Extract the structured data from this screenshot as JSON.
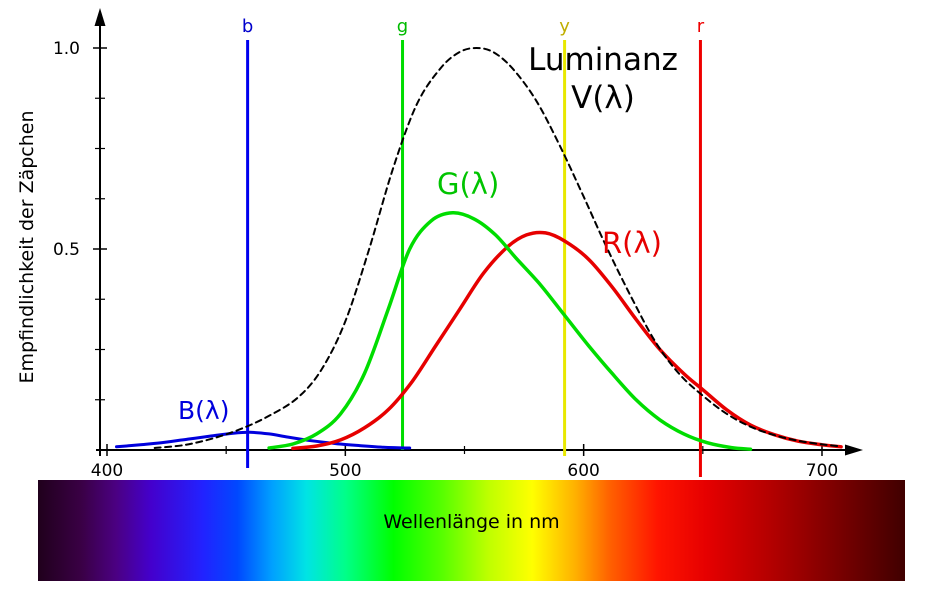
{
  "chart_data": {
    "type": "line",
    "title": "",
    "xlabel": "Wellenlänge in nm",
    "ylabel": "Empfindlichkeit der Zäpchen",
    "x_unit": "nm",
    "xlim": [
      400,
      710
    ],
    "ylim": [
      0,
      1.05
    ],
    "grid": false,
    "x_ticks_major": [
      400,
      500,
      600,
      700
    ],
    "x_ticks_minor": [
      450,
      550,
      650
    ],
    "y_ticks_labeled": [
      0.5,
      1.0
    ],
    "y_ticks_minor": [
      0.125,
      0.25,
      0.375,
      0.625,
      0.75,
      0.875
    ],
    "series": [
      {
        "name": "B",
        "label": "B(λ)",
        "color": "#0000dd",
        "style": "solid",
        "points": [
          [
            404,
            0.008
          ],
          [
            414,
            0.013
          ],
          [
            424,
            0.019
          ],
          [
            434,
            0.027
          ],
          [
            444,
            0.035
          ],
          [
            452,
            0.041
          ],
          [
            460,
            0.044
          ],
          [
            468,
            0.04
          ],
          [
            476,
            0.032
          ],
          [
            486,
            0.023
          ],
          [
            496,
            0.016
          ],
          [
            506,
            0.011
          ],
          [
            516,
            0.007
          ],
          [
            527,
            0.005
          ]
        ]
      },
      {
        "name": "R",
        "label": "R(λ)",
        "color": "#e60000",
        "style": "solid",
        "points": [
          [
            478,
            0.004
          ],
          [
            488,
            0.01
          ],
          [
            498,
            0.025
          ],
          [
            508,
            0.055
          ],
          [
            518,
            0.1
          ],
          [
            528,
            0.17
          ],
          [
            538,
            0.26
          ],
          [
            548,
            0.35
          ],
          [
            558,
            0.44
          ],
          [
            568,
            0.505
          ],
          [
            576,
            0.535
          ],
          [
            584,
            0.54
          ],
          [
            592,
            0.52
          ],
          [
            602,
            0.475
          ],
          [
            612,
            0.405
          ],
          [
            622,
            0.325
          ],
          [
            632,
            0.25
          ],
          [
            642,
            0.19
          ],
          [
            650,
            0.15
          ],
          [
            660,
            0.1
          ],
          [
            670,
            0.062
          ],
          [
            680,
            0.038
          ],
          [
            690,
            0.022
          ],
          [
            700,
            0.013
          ],
          [
            708,
            0.008
          ]
        ]
      },
      {
        "name": "G",
        "label": "G(λ)",
        "color": "#00dd00",
        "style": "solid",
        "points": [
          [
            468,
            0.005
          ],
          [
            478,
            0.015
          ],
          [
            488,
            0.04
          ],
          [
            498,
            0.09
          ],
          [
            508,
            0.19
          ],
          [
            518,
            0.35
          ],
          [
            527,
            0.5
          ],
          [
            536,
            0.57
          ],
          [
            545,
            0.59
          ],
          [
            554,
            0.575
          ],
          [
            563,
            0.535
          ],
          [
            572,
            0.475
          ],
          [
            582,
            0.41
          ],
          [
            592,
            0.335
          ],
          [
            602,
            0.26
          ],
          [
            612,
            0.19
          ],
          [
            622,
            0.125
          ],
          [
            632,
            0.075
          ],
          [
            642,
            0.04
          ],
          [
            652,
            0.018
          ],
          [
            662,
            0.006
          ],
          [
            670,
            0.002
          ]
        ]
      },
      {
        "name": "V",
        "label": "Luminanz V(λ)",
        "color": "#000000",
        "style": "dashed",
        "points": [
          [
            420,
            0.005
          ],
          [
            432,
            0.012
          ],
          [
            444,
            0.028
          ],
          [
            456,
            0.052
          ],
          [
            468,
            0.085
          ],
          [
            480,
            0.13
          ],
          [
            490,
            0.2
          ],
          [
            500,
            0.32
          ],
          [
            510,
            0.5
          ],
          [
            520,
            0.7
          ],
          [
            530,
            0.86
          ],
          [
            540,
            0.95
          ],
          [
            548,
            0.99
          ],
          [
            555,
            1.0
          ],
          [
            562,
            0.99
          ],
          [
            570,
            0.95
          ],
          [
            580,
            0.87
          ],
          [
            590,
            0.757
          ],
          [
            600,
            0.63
          ],
          [
            610,
            0.5
          ],
          [
            620,
            0.38
          ],
          [
            630,
            0.27
          ],
          [
            640,
            0.19
          ],
          [
            650,
            0.135
          ],
          [
            660,
            0.09
          ],
          [
            670,
            0.058
          ],
          [
            680,
            0.037
          ],
          [
            690,
            0.023
          ],
          [
            700,
            0.014
          ],
          [
            708,
            0.009
          ]
        ]
      }
    ],
    "markers": [
      {
        "name": "b",
        "nm": 459,
        "color": "#0000ee",
        "label_color": "#0000cc"
      },
      {
        "name": "g",
        "nm": 524,
        "color": "#00dd00",
        "label_color": "#00bb00"
      },
      {
        "name": "y",
        "nm": 592,
        "color": "#e8e800",
        "label_color": "#c0ae00"
      },
      {
        "name": "r",
        "nm": 649,
        "color": "#ee0000",
        "label_color": "#ee0000"
      }
    ]
  },
  "labels": {
    "y_axis_title": "Empfindlichkeit der Zäpchen",
    "luminanz_line1": "Luminanz",
    "luminanz_line2": "V(λ)",
    "g_label": "G(λ)",
    "r_label": "R(λ)",
    "b_label": "B(λ)"
  },
  "spectrum": {
    "label": "Wellenlänge in nm",
    "stops": [
      [
        "0%",
        "#20001c"
      ],
      [
        "5%",
        "#3a0045"
      ],
      [
        "9%",
        "#4b0082"
      ],
      [
        "13%",
        "#4400cc"
      ],
      [
        "19%",
        "#2222ff"
      ],
      [
        "23%",
        "#0048ff"
      ],
      [
        "27%",
        "#00a0ff"
      ],
      [
        "31%",
        "#00e4e4"
      ],
      [
        "35.5%",
        "#00ff88"
      ],
      [
        "41%",
        "#00ff00"
      ],
      [
        "46.5%",
        "#55ff00"
      ],
      [
        "52%",
        "#bfff00"
      ],
      [
        "57%",
        "#ffff00"
      ],
      [
        "62%",
        "#ffb000"
      ],
      [
        "66%",
        "#ff6000"
      ],
      [
        "71.5%",
        "#ff1400"
      ],
      [
        "77%",
        "#e60000"
      ],
      [
        "85%",
        "#b00000"
      ],
      [
        "92%",
        "#7c0000"
      ],
      [
        "100%",
        "#400000"
      ]
    ]
  }
}
